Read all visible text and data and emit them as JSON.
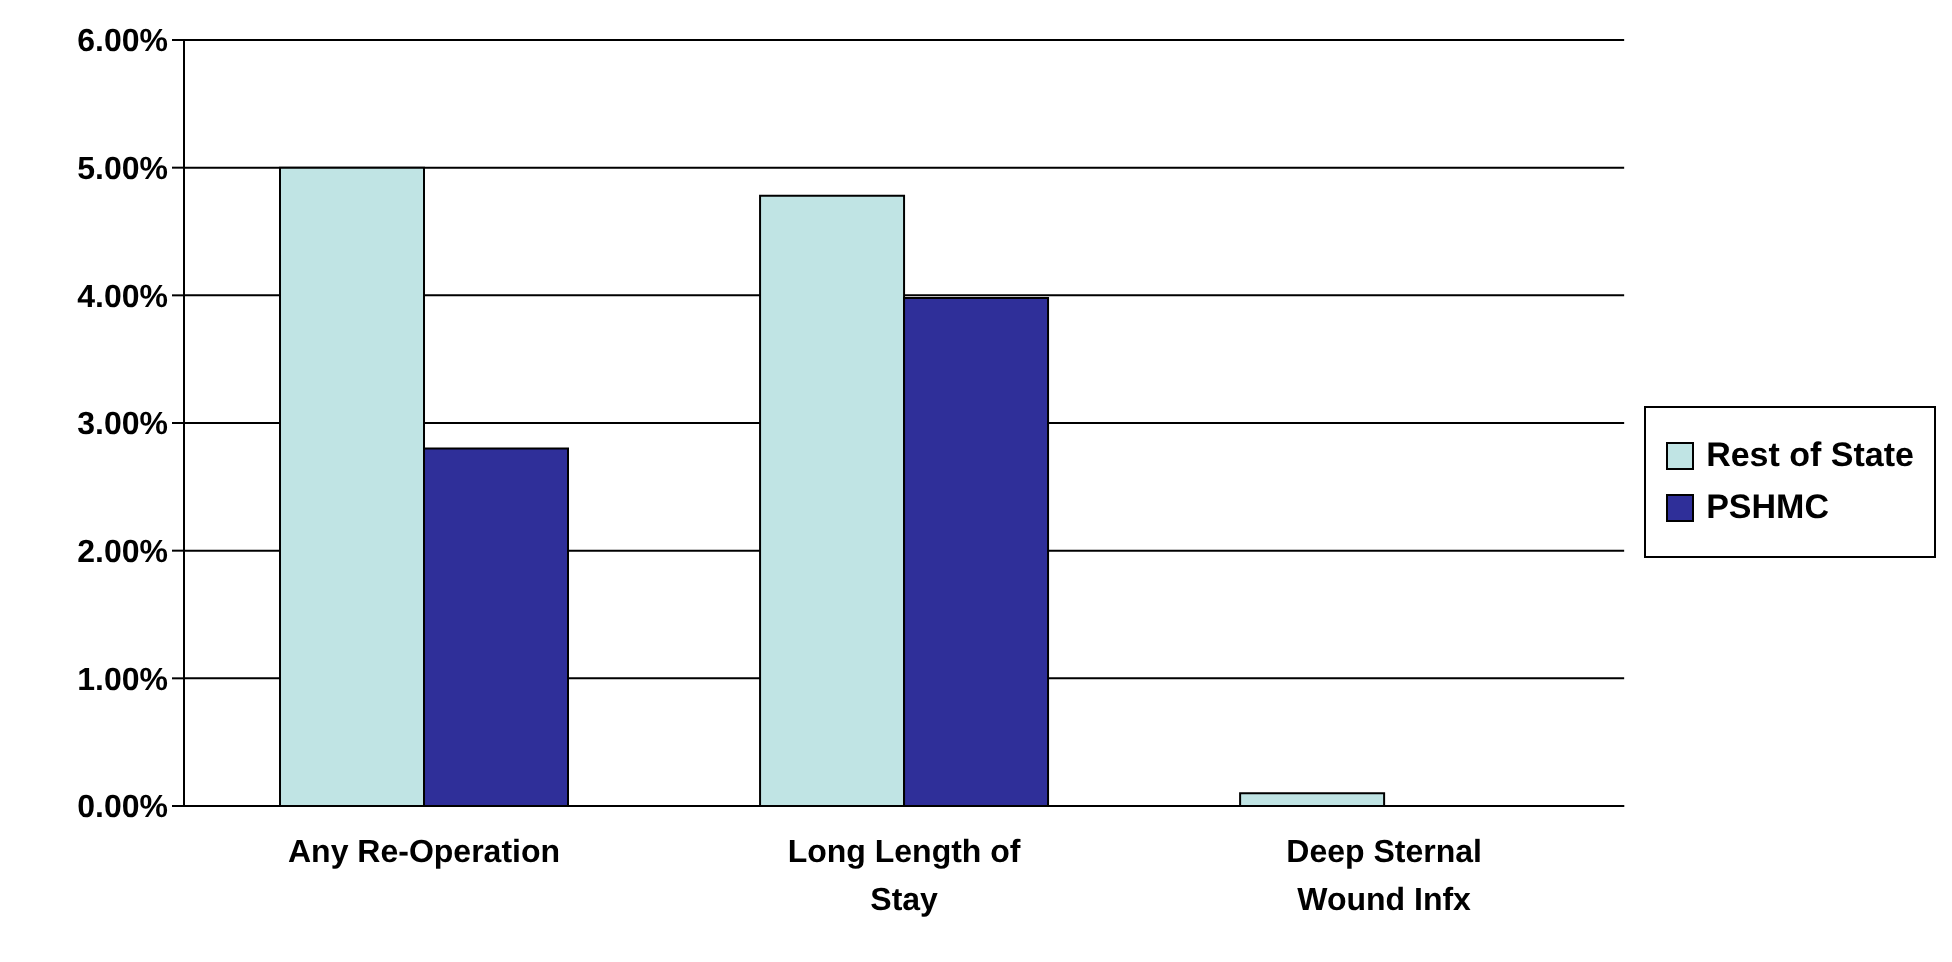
{
  "chart_data": {
    "type": "bar",
    "categories": [
      "Any Re-Operation",
      "Long Length of Stay",
      "Deep Sternal Wound Infx"
    ],
    "series": [
      {
        "name": "Rest of State",
        "color": "#c0e4e4",
        "values": [
          5.0,
          4.78,
          0.1
        ]
      },
      {
        "name": "PSHMC",
        "color": "#2f2f99",
        "values": [
          2.8,
          3.98,
          0
        ]
      }
    ],
    "ylim": [
      0,
      6
    ],
    "yticks": [
      {
        "value": 0,
        "label": "0.00%"
      },
      {
        "value": 1,
        "label": "1.00%"
      },
      {
        "value": 2,
        "label": "2.00%"
      },
      {
        "value": 3,
        "label": "3.00%"
      },
      {
        "value": 4,
        "label": "4.00%"
      },
      {
        "value": 5,
        "label": "5.00%"
      },
      {
        "value": 6,
        "label": "6.00%"
      }
    ],
    "grid": "y",
    "legend": "right"
  }
}
